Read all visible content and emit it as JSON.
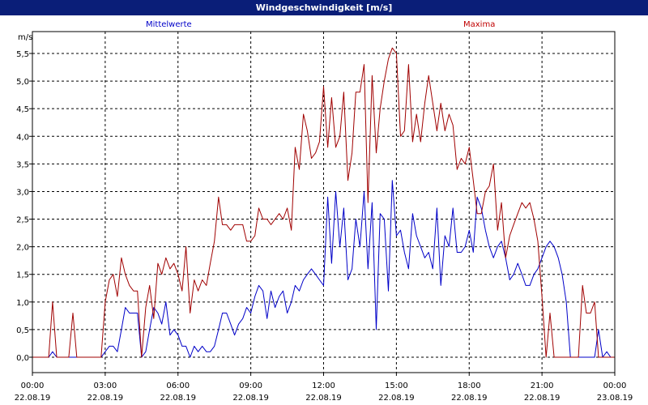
{
  "window": {
    "title": "Windgeschwindigkeit [m/s]"
  },
  "chart_data": {
    "type": "line",
    "title": "Windgeschwindigkeit [m/s]",
    "ylabel": "m/s",
    "xlabel": "",
    "ylim": [
      0,
      6
    ],
    "xlim": [
      0,
      24
    ],
    "grid": true,
    "yticks": [
      "0,0",
      "0,5",
      "1,0",
      "1,5",
      "2,0",
      "2,5",
      "3,0",
      "3,5",
      "4,0",
      "4,5",
      "5,0",
      "5,5"
    ],
    "ytick_values": [
      0,
      0.5,
      1,
      1.5,
      2,
      2.5,
      3,
      3.5,
      4,
      4.5,
      5,
      5.5
    ],
    "xticks": [
      {
        "time": "00:00",
        "date": "22.08.19",
        "hour": 0
      },
      {
        "time": "03:00",
        "date": "22.08.19",
        "hour": 3
      },
      {
        "time": "06:00",
        "date": "22.08.19",
        "hour": 6
      },
      {
        "time": "09:00",
        "date": "22.08.19",
        "hour": 9
      },
      {
        "time": "12:00",
        "date": "22.08.19",
        "hour": 12
      },
      {
        "time": "15:00",
        "date": "22.08.19",
        "hour": 15
      },
      {
        "time": "18:00",
        "date": "22.08.19",
        "hour": 18
      },
      {
        "time": "21:00",
        "date": "22.08.19",
        "hour": 21
      },
      {
        "time": "00:00",
        "date": "23.08.19",
        "hour": 24
      }
    ],
    "series": [
      {
        "name": "Mittelwerte",
        "color": "#0000c8",
        "points": [
          [
            0,
            0
          ],
          [
            0.67,
            0
          ],
          [
            0.83,
            0.1
          ],
          [
            1.0,
            0
          ],
          [
            1.5,
            0
          ],
          [
            1.83,
            0
          ],
          [
            2.0,
            0
          ],
          [
            2.5,
            0
          ],
          [
            2.83,
            0
          ],
          [
            3.0,
            0.1
          ],
          [
            3.17,
            0.2
          ],
          [
            3.33,
            0.2
          ],
          [
            3.5,
            0.1
          ],
          [
            3.67,
            0.5
          ],
          [
            3.83,
            0.9
          ],
          [
            4.0,
            0.8
          ],
          [
            4.17,
            0.8
          ],
          [
            4.33,
            0.8
          ],
          [
            4.5,
            0
          ],
          [
            4.67,
            0.1
          ],
          [
            4.83,
            0.5
          ],
          [
            5.0,
            0.9
          ],
          [
            5.17,
            0.8
          ],
          [
            5.33,
            0.6
          ],
          [
            5.5,
            1.0
          ],
          [
            5.67,
            0.4
          ],
          [
            5.83,
            0.5
          ],
          [
            6.0,
            0.4
          ],
          [
            6.17,
            0.2
          ],
          [
            6.33,
            0.2
          ],
          [
            6.5,
            0
          ],
          [
            6.67,
            0.2
          ],
          [
            6.83,
            0.1
          ],
          [
            7.0,
            0.2
          ],
          [
            7.17,
            0.1
          ],
          [
            7.33,
            0.1
          ],
          [
            7.5,
            0.2
          ],
          [
            7.67,
            0.5
          ],
          [
            7.83,
            0.8
          ],
          [
            8.0,
            0.8
          ],
          [
            8.17,
            0.6
          ],
          [
            8.33,
            0.4
          ],
          [
            8.5,
            0.6
          ],
          [
            8.67,
            0.7
          ],
          [
            8.83,
            0.9
          ],
          [
            9.0,
            0.8
          ],
          [
            9.17,
            1.1
          ],
          [
            9.33,
            1.3
          ],
          [
            9.5,
            1.2
          ],
          [
            9.67,
            0.7
          ],
          [
            9.83,
            1.2
          ],
          [
            10.0,
            0.9
          ],
          [
            10.17,
            1.1
          ],
          [
            10.33,
            1.2
          ],
          [
            10.5,
            0.8
          ],
          [
            10.67,
            1.0
          ],
          [
            10.83,
            1.3
          ],
          [
            11.0,
            1.2
          ],
          [
            11.17,
            1.4
          ],
          [
            11.33,
            1.5
          ],
          [
            11.5,
            1.6
          ],
          [
            11.67,
            1.5
          ],
          [
            11.83,
            1.4
          ],
          [
            12.0,
            1.3
          ],
          [
            12.17,
            2.9
          ],
          [
            12.33,
            1.7
          ],
          [
            12.5,
            3.0
          ],
          [
            12.67,
            2.0
          ],
          [
            12.83,
            2.7
          ],
          [
            13.0,
            1.4
          ],
          [
            13.17,
            1.6
          ],
          [
            13.33,
            2.5
          ],
          [
            13.5,
            2.0
          ],
          [
            13.67,
            3.0
          ],
          [
            13.83,
            1.6
          ],
          [
            14.0,
            2.8
          ],
          [
            14.17,
            0.5
          ],
          [
            14.33,
            2.6
          ],
          [
            14.5,
            2.5
          ],
          [
            14.67,
            1.2
          ],
          [
            14.83,
            3.2
          ],
          [
            15.0,
            2.2
          ],
          [
            15.17,
            2.3
          ],
          [
            15.33,
            1.9
          ],
          [
            15.5,
            1.6
          ],
          [
            15.67,
            2.6
          ],
          [
            15.83,
            2.2
          ],
          [
            16.0,
            2.0
          ],
          [
            16.17,
            1.8
          ],
          [
            16.33,
            1.9
          ],
          [
            16.5,
            1.6
          ],
          [
            16.67,
            2.7
          ],
          [
            16.83,
            1.3
          ],
          [
            17.0,
            2.2
          ],
          [
            17.17,
            2.0
          ],
          [
            17.33,
            2.7
          ],
          [
            17.5,
            1.9
          ],
          [
            17.67,
            1.9
          ],
          [
            17.83,
            2.0
          ],
          [
            18.0,
            2.3
          ],
          [
            18.17,
            1.9
          ],
          [
            18.33,
            2.9
          ],
          [
            18.5,
            2.7
          ],
          [
            18.67,
            2.3
          ],
          [
            18.83,
            2.0
          ],
          [
            19.0,
            1.8
          ],
          [
            19.17,
            2.0
          ],
          [
            19.33,
            2.1
          ],
          [
            19.5,
            1.8
          ],
          [
            19.67,
            1.4
          ],
          [
            19.83,
            1.5
          ],
          [
            20.0,
            1.7
          ],
          [
            20.17,
            1.5
          ],
          [
            20.33,
            1.3
          ],
          [
            20.5,
            1.3
          ],
          [
            20.67,
            1.5
          ],
          [
            20.83,
            1.6
          ],
          [
            21.0,
            1.8
          ],
          [
            21.17,
            2.0
          ],
          [
            21.33,
            2.1
          ],
          [
            21.5,
            2.0
          ],
          [
            21.67,
            1.8
          ],
          [
            21.83,
            1.5
          ],
          [
            22.0,
            1.0
          ],
          [
            22.17,
            0
          ],
          [
            22.33,
            0
          ],
          [
            22.5,
            0
          ],
          [
            22.83,
            0
          ],
          [
            23.0,
            0
          ],
          [
            23.17,
            0
          ],
          [
            23.33,
            0.5
          ],
          [
            23.5,
            0
          ],
          [
            23.67,
            0.1
          ],
          [
            23.83,
            0
          ],
          [
            24.0,
            0
          ]
        ]
      },
      {
        "name": "Maxima",
        "color": "#a00000",
        "points": [
          [
            0,
            0
          ],
          [
            0.5,
            0
          ],
          [
            0.67,
            0
          ],
          [
            0.83,
            1.0
          ],
          [
            1.0,
            0
          ],
          [
            1.33,
            0
          ],
          [
            1.5,
            0
          ],
          [
            1.67,
            0.8
          ],
          [
            1.83,
            0
          ],
          [
            2.0,
            0
          ],
          [
            2.5,
            0
          ],
          [
            2.83,
            0
          ],
          [
            3.0,
            1.0
          ],
          [
            3.17,
            1.4
          ],
          [
            3.33,
            1.5
          ],
          [
            3.5,
            1.1
          ],
          [
            3.67,
            1.8
          ],
          [
            3.83,
            1.5
          ],
          [
            4.0,
            1.3
          ],
          [
            4.17,
            1.2
          ],
          [
            4.33,
            1.2
          ],
          [
            4.5,
            0
          ],
          [
            4.67,
            0.9
          ],
          [
            4.83,
            1.3
          ],
          [
            5.0,
            0.7
          ],
          [
            5.17,
            1.7
          ],
          [
            5.33,
            1.5
          ],
          [
            5.5,
            1.8
          ],
          [
            5.67,
            1.6
          ],
          [
            5.83,
            1.7
          ],
          [
            6.0,
            1.5
          ],
          [
            6.17,
            1.2
          ],
          [
            6.33,
            2.0
          ],
          [
            6.5,
            0.8
          ],
          [
            6.67,
            1.4
          ],
          [
            6.83,
            1.2
          ],
          [
            7.0,
            1.4
          ],
          [
            7.17,
            1.3
          ],
          [
            7.33,
            1.7
          ],
          [
            7.5,
            2.1
          ],
          [
            7.67,
            2.9
          ],
          [
            7.83,
            2.4
          ],
          [
            8.0,
            2.4
          ],
          [
            8.17,
            2.3
          ],
          [
            8.33,
            2.4
          ],
          [
            8.5,
            2.4
          ],
          [
            8.67,
            2.4
          ],
          [
            8.83,
            2.1
          ],
          [
            9.0,
            2.1
          ],
          [
            9.17,
            2.2
          ],
          [
            9.33,
            2.7
          ],
          [
            9.5,
            2.5
          ],
          [
            9.67,
            2.5
          ],
          [
            9.83,
            2.4
          ],
          [
            10.0,
            2.5
          ],
          [
            10.17,
            2.6
          ],
          [
            10.33,
            2.5
          ],
          [
            10.5,
            2.7
          ],
          [
            10.67,
            2.3
          ],
          [
            10.83,
            3.8
          ],
          [
            11.0,
            3.4
          ],
          [
            11.17,
            4.4
          ],
          [
            11.33,
            4.1
          ],
          [
            11.5,
            3.6
          ],
          [
            11.67,
            3.7
          ],
          [
            11.83,
            3.9
          ],
          [
            12.0,
            4.9
          ],
          [
            12.17,
            3.8
          ],
          [
            12.33,
            4.7
          ],
          [
            12.5,
            3.8
          ],
          [
            12.67,
            4.0
          ],
          [
            12.83,
            4.8
          ],
          [
            13.0,
            3.2
          ],
          [
            13.17,
            3.7
          ],
          [
            13.33,
            4.8
          ],
          [
            13.5,
            4.8
          ],
          [
            13.67,
            5.3
          ],
          [
            13.83,
            2.8
          ],
          [
            14.0,
            5.1
          ],
          [
            14.17,
            3.7
          ],
          [
            14.33,
            4.5
          ],
          [
            14.5,
            5.0
          ],
          [
            14.67,
            5.4
          ],
          [
            14.83,
            5.6
          ],
          [
            15.0,
            5.5
          ],
          [
            15.17,
            4.0
          ],
          [
            15.33,
            4.1
          ],
          [
            15.5,
            5.3
          ],
          [
            15.67,
            3.9
          ],
          [
            15.83,
            4.4
          ],
          [
            16.0,
            3.9
          ],
          [
            16.17,
            4.6
          ],
          [
            16.33,
            5.1
          ],
          [
            16.5,
            4.6
          ],
          [
            16.67,
            4.1
          ],
          [
            16.83,
            4.6
          ],
          [
            17.0,
            4.1
          ],
          [
            17.17,
            4.4
          ],
          [
            17.33,
            4.2
          ],
          [
            17.5,
            3.4
          ],
          [
            17.67,
            3.6
          ],
          [
            17.83,
            3.5
          ],
          [
            18.0,
            3.8
          ],
          [
            18.17,
            3.2
          ],
          [
            18.33,
            2.6
          ],
          [
            18.5,
            2.6
          ],
          [
            18.67,
            3.0
          ],
          [
            18.83,
            3.1
          ],
          [
            19.0,
            3.5
          ],
          [
            19.17,
            2.3
          ],
          [
            19.33,
            2.8
          ],
          [
            19.5,
            1.8
          ],
          [
            19.67,
            2.2
          ],
          [
            19.83,
            2.4
          ],
          [
            20.0,
            2.6
          ],
          [
            20.17,
            2.8
          ],
          [
            20.33,
            2.7
          ],
          [
            20.5,
            2.8
          ],
          [
            20.67,
            2.5
          ],
          [
            20.83,
            2.1
          ],
          [
            21.0,
            1.1
          ],
          [
            21.17,
            0
          ],
          [
            21.33,
            0.8
          ],
          [
            21.5,
            0
          ],
          [
            21.83,
            0
          ],
          [
            22.0,
            0
          ],
          [
            22.17,
            0
          ],
          [
            22.33,
            0
          ],
          [
            22.5,
            0
          ],
          [
            22.67,
            1.3
          ],
          [
            22.83,
            0.8
          ],
          [
            23.0,
            0.8
          ],
          [
            23.17,
            1.0
          ],
          [
            23.33,
            0
          ],
          [
            23.5,
            0
          ],
          [
            24.0,
            0
          ]
        ]
      }
    ]
  }
}
